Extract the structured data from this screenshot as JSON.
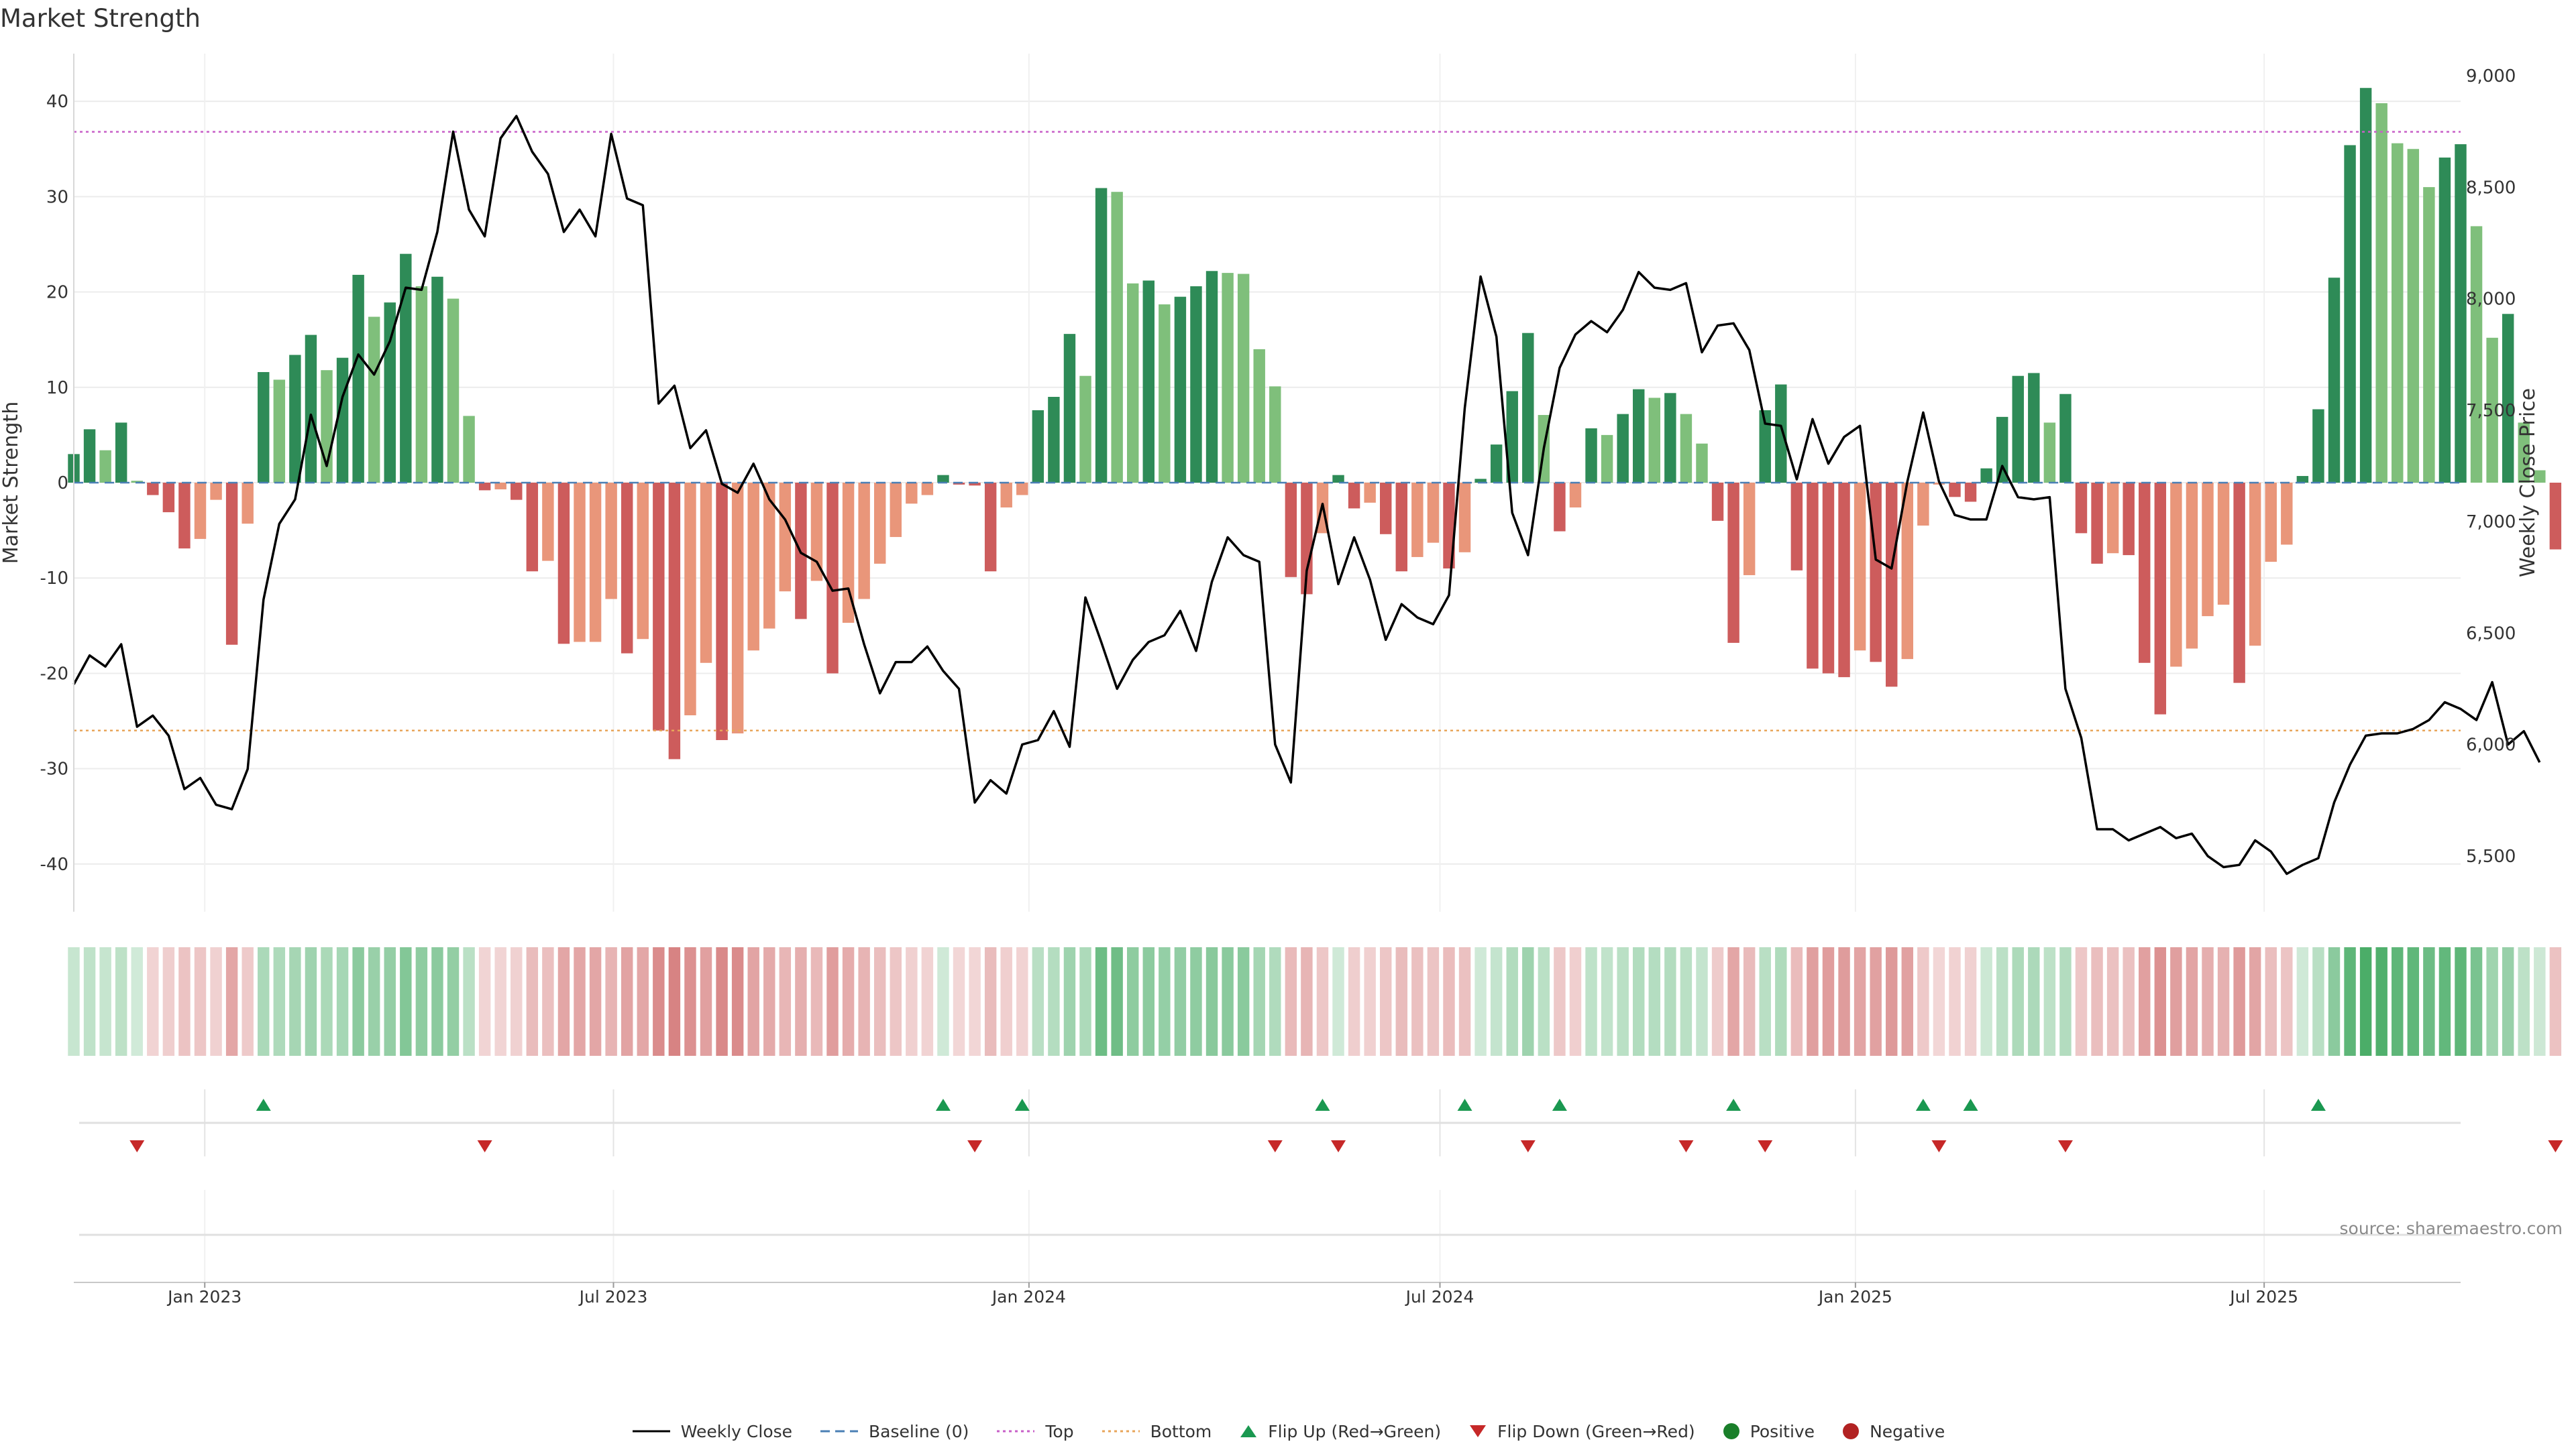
{
  "chart_data": {
    "type": "bar",
    "title": "Market Strength",
    "ylabel_left": "Market Strength",
    "ylabel_right": "Weekly Close Price",
    "ylim_left": [
      -45,
      45
    ],
    "yticks_left": [
      -40,
      -30,
      -20,
      -10,
      0,
      10,
      20,
      30,
      40
    ],
    "ylim_right": [
      5250,
      9100
    ],
    "yticks_right": [
      5500,
      6000,
      6500,
      7000,
      7500,
      8000,
      8500,
      9000
    ],
    "ytick_labels_right": [
      "5,500",
      "6,000",
      "6,500",
      "7,000",
      "7,500",
      "8,000",
      "8,500",
      "9,000"
    ],
    "xlim": [
      "2022-11-04",
      "2025-09-26"
    ],
    "xticks": [
      {
        "date": "2023-01-01",
        "label": "Jan 2023"
      },
      {
        "date": "2023-07-01",
        "label": "Jul 2023"
      },
      {
        "date": "2024-01-01",
        "label": "Jan 2024"
      },
      {
        "date": "2024-07-01",
        "label": "Jul 2024"
      },
      {
        "date": "2025-01-01",
        "label": "Jan 2025"
      },
      {
        "date": "2025-07-01",
        "label": "Jul 2025"
      }
    ],
    "start_date": "2022-11-04",
    "frequency": "weekly",
    "top_line": 36.8,
    "bottom_line": -26.0,
    "strength": [
      3.0,
      5.6,
      3.4,
      6.3,
      0.2,
      -1.3,
      -3.1,
      -6.9,
      -5.9,
      -1.8,
      -17.0,
      -4.3,
      11.6,
      10.8,
      13.4,
      15.5,
      11.8,
      13.1,
      21.8,
      17.4,
      18.9,
      24.0,
      20.6,
      21.6,
      19.3,
      7.0,
      -0.8,
      -0.7,
      -1.8,
      -9.3,
      -8.2,
      -16.9,
      -16.7,
      -16.7,
      -12.2,
      -17.9,
      -16.4,
      -26.0,
      -29.0,
      -24.4,
      -18.9,
      -27.0,
      -26.3,
      -17.6,
      -15.3,
      -11.4,
      -14.3,
      -10.3,
      -20.0,
      -14.7,
      -12.2,
      -8.5,
      -5.7,
      -2.2,
      -1.3,
      0.8,
      -0.2,
      -0.3,
      -9.3,
      -2.6,
      -1.3,
      7.6,
      9.0,
      15.6,
      11.2,
      30.9,
      30.5,
      20.9,
      21.2,
      18.7,
      19.5,
      20.6,
      22.2,
      22.0,
      21.9,
      14.0,
      10.1,
      -9.9,
      -11.7,
      -5.3,
      0.8,
      -2.7,
      -2.1,
      -5.4,
      -9.3,
      -7.8,
      -6.3,
      -9.0,
      -7.3,
      0.4,
      4.0,
      9.6,
      15.7,
      7.1,
      -5.1,
      -2.6,
      5.7,
      5.0,
      7.2,
      9.8,
      8.9,
      9.4,
      7.2,
      4.1,
      -4.0,
      -16.8,
      -9.7,
      7.6,
      10.3,
      -9.2,
      -19.5,
      -20.0,
      -20.4,
      -17.6,
      -18.8,
      -21.4,
      -18.5,
      -4.5,
      -0.2,
      -1.5,
      -2.0,
      1.5,
      6.9,
      11.2,
      11.5,
      6.3,
      9.3,
      -5.3,
      -8.5,
      -7.4,
      -7.6,
      -18.9,
      -24.3,
      -19.3,
      -17.4,
      -14.0,
      -12.8,
      -21.0,
      -17.1,
      -8.3,
      -6.5,
      0.7,
      7.7,
      21.5,
      35.4,
      41.4,
      39.8,
      35.6,
      35.0,
      31.0,
      34.1,
      35.5,
      26.9,
      15.2,
      17.7,
      6.3,
      1.3,
      -7.0
    ],
    "close": [
      6270,
      6400,
      6350,
      6450,
      6080,
      6130,
      6040,
      5800,
      5850,
      5730,
      5710,
      5890,
      6650,
      6990,
      7100,
      7480,
      7250,
      7560,
      7750,
      7660,
      7810,
      8050,
      8040,
      8300,
      8750,
      8400,
      8280,
      8720,
      8820,
      8660,
      8560,
      8300,
      8400,
      8280,
      8740,
      8450,
      8420,
      7530,
      7610,
      7330,
      7410,
      7170,
      7130,
      7260,
      7100,
      7010,
      6860,
      6820,
      6690,
      6700,
      6450,
      6230,
      6370,
      6370,
      6440,
      6330,
      6250,
      5740,
      5840,
      5780,
      6000,
      6020,
      6150,
      5990,
      6660,
      6460,
      6250,
      6380,
      6460,
      6490,
      6600,
      6420,
      6730,
      6930,
      6850,
      6820,
      6000,
      5830,
      6780,
      7080,
      6720,
      6930,
      6740,
      6470,
      6630,
      6570,
      6540,
      6670,
      7510,
      8100,
      7830,
      7040,
      6850,
      7330,
      7690,
      7840,
      7900,
      7850,
      7950,
      8120,
      8050,
      8040,
      8070,
      7760,
      7880,
      7890,
      7770,
      7440,
      7430,
      7190,
      7460,
      7260,
      7380,
      7430,
      6830,
      6790,
      7180,
      7490,
      7180,
      7030,
      7010,
      7010,
      7250,
      7110,
      7100,
      7110,
      6250,
      6030,
      5620,
      5620,
      5570,
      5600,
      5630,
      5580,
      5600,
      5500,
      5450,
      5460,
      5570,
      5520,
      5420,
      5460,
      5490,
      5740,
      5910,
      6040,
      6050,
      6050,
      6070,
      6110,
      6190,
      6160,
      6110,
      6280,
      6000,
      6060,
      5920
    ],
    "flip_up_weeks": [
      12,
      55,
      60,
      79,
      88,
      94,
      105,
      117,
      120,
      142
    ],
    "flip_down_weeks": [
      4,
      26,
      57,
      76,
      80,
      92,
      102,
      107,
      118,
      126,
      157
    ],
    "colors": {
      "pos_dark": "#2e8b57",
      "pos_light": "#7fbf7b",
      "neg_dark": "#cd5c5c",
      "neg_light": "#e9967a",
      "close_line": "#000000",
      "baseline": "#4a7fb5",
      "top": "#c85fc8",
      "bottom": "#e8a55a",
      "flip_up": "#1a9850",
      "flip_down": "#c62828"
    }
  },
  "title": "Market Strength",
  "source": "source: sharemaestro.com",
  "legend": {
    "weekly_close": "Weekly Close",
    "baseline": "Baseline (0)",
    "top": "Top",
    "bottom": "Bottom",
    "flip_up": "Flip Up (Red→Green)",
    "flip_down": "Flip Down (Green→Red)",
    "positive": "Positive",
    "negative": "Negative"
  }
}
